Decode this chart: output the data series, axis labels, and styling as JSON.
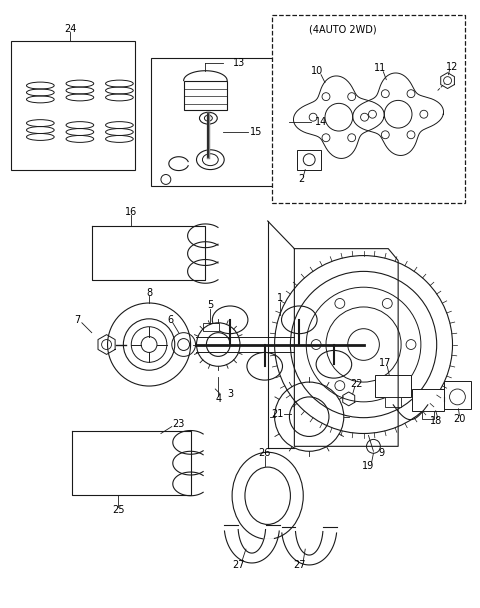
{
  "bg_color": "#ffffff",
  "line_color": "#1a1a1a",
  "fig_width": 4.8,
  "fig_height": 6.08,
  "dpi": 100
}
